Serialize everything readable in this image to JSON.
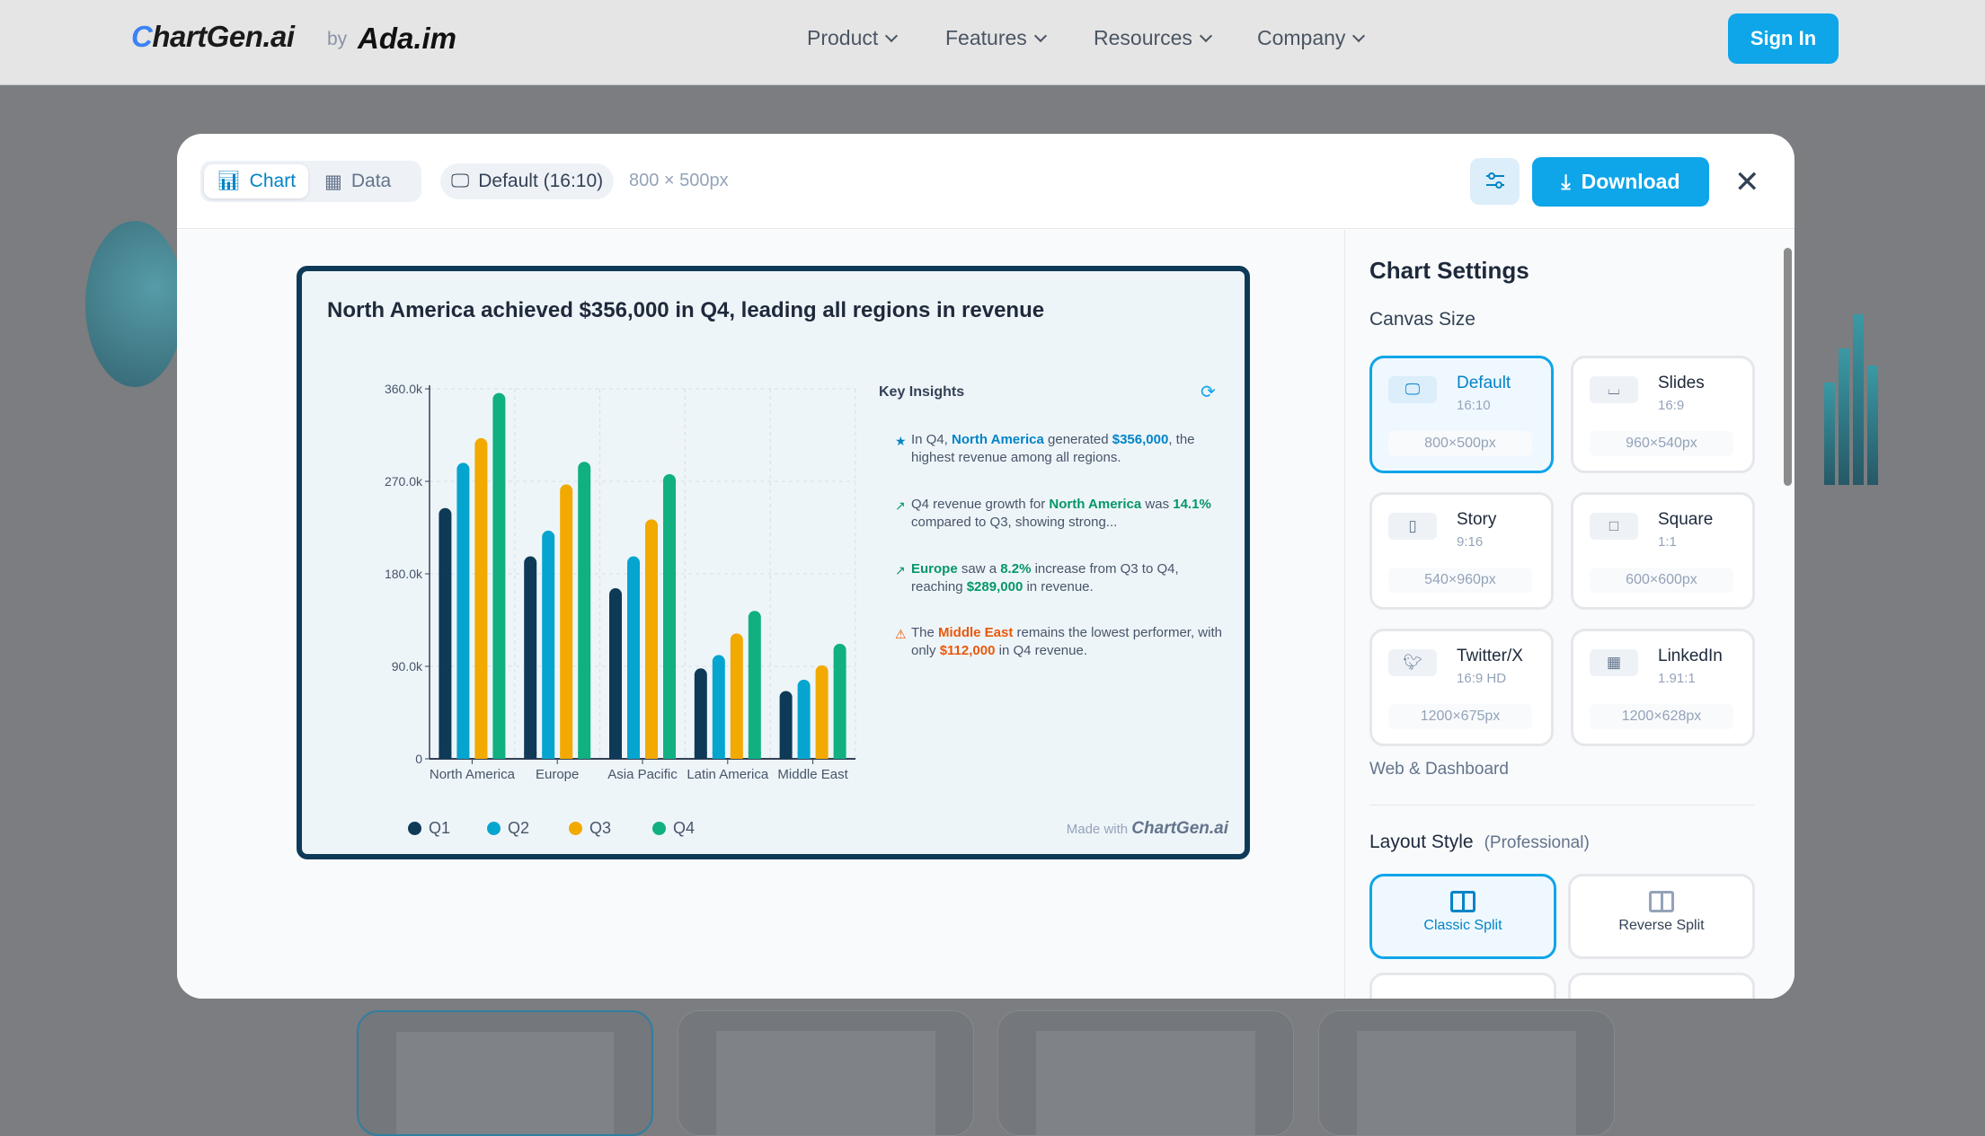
{
  "nav": {
    "logo": "ChartGen.ai",
    "by": "by",
    "partner_logo": "Ada.im",
    "items": [
      {
        "label": "Product"
      },
      {
        "label": "Features"
      },
      {
        "label": "Resources"
      },
      {
        "label": "Company"
      }
    ],
    "sign_in": "Sign In"
  },
  "toolbar": {
    "tabs": [
      {
        "label": "Chart",
        "icon": "bar-chart-icon"
      },
      {
        "label": "Data",
        "icon": "table-icon"
      }
    ],
    "canvas_preset": "Default (16:10)",
    "dimensions": "800 × 500px",
    "download": "Download",
    "accent": "#0ea5e9"
  },
  "chart_card": {
    "insights_title": "Key Insights",
    "insights": [
      {
        "icon": "star-icon",
        "color": "#0284c7",
        "segments": [
          {
            "t": "In Q4, "
          },
          {
            "t": "North America",
            "b": 1
          },
          {
            "t": " generated "
          },
          {
            "t": "$356,000",
            "b": 1
          },
          {
            "t": ", the highest revenue among all regions."
          }
        ]
      },
      {
        "icon": "trend-up-icon",
        "color": "#059669",
        "segments": [
          {
            "t": "Q4 revenue growth for "
          },
          {
            "t": "North America",
            "b": 1
          },
          {
            "t": " was "
          },
          {
            "t": "14.1%",
            "b": 1
          },
          {
            "t": " compared to Q3, showing strong..."
          }
        ]
      },
      {
        "icon": "trend-up-icon",
        "color": "#059669",
        "segments": [
          {
            "t": "Europe",
            "b": 1
          },
          {
            "t": " saw a "
          },
          {
            "t": "8.2%",
            "b": 1
          },
          {
            "t": " increase from Q3 to Q4, reaching "
          },
          {
            "t": "$289,000",
            "b": 1
          },
          {
            "t": " in revenue."
          }
        ]
      },
      {
        "icon": "warning-icon",
        "color": "#ea580c",
        "segments": [
          {
            "t": "The "
          },
          {
            "t": "Middle East",
            "b": 1
          },
          {
            "t": " remains the lowest performer, with only "
          },
          {
            "t": "$112,000",
            "b": 1
          },
          {
            "t": " in Q4 revenue."
          }
        ]
      }
    ],
    "made_with": "Made with",
    "made_with_brand": "ChartGen.ai"
  },
  "chart_data": {
    "type": "bar",
    "title": "North America achieved $356,000 in Q4, leading all regions in revenue",
    "categories": [
      "North America",
      "Europe",
      "Asia Pacific",
      "Latin America",
      "Middle East"
    ],
    "series": [
      {
        "name": "Q1",
        "color": "#0f3a57",
        "values": [
          244000,
          197000,
          166000,
          88000,
          66000
        ]
      },
      {
        "name": "Q2",
        "color": "#06a5cf",
        "values": [
          288000,
          222000,
          197000,
          101000,
          77000
        ]
      },
      {
        "name": "Q3",
        "color": "#f2a900",
        "values": [
          312000,
          267000,
          233000,
          122000,
          91000
        ]
      },
      {
        "name": "Q4",
        "color": "#10b081",
        "values": [
          356000,
          289000,
          277000,
          144000,
          112000
        ]
      }
    ],
    "yticks": [
      "0",
      "90.0k",
      "180.0k",
      "270.0k",
      "360.0k"
    ],
    "ylim": [
      0,
      360000
    ],
    "grid": true,
    "legend": "bottom"
  },
  "settings": {
    "title": "Chart Settings",
    "canvas_size_label": "Canvas Size",
    "sizes": [
      {
        "name": "Default",
        "ratio": "16:10",
        "px": "800×500px",
        "icon": "monitor-icon",
        "selected": true
      },
      {
        "name": "Slides",
        "ratio": "16:9",
        "px": "960×540px",
        "icon": "presentation-icon"
      },
      {
        "name": "Story",
        "ratio": "9:16",
        "px": "540×960px",
        "icon": "phone-icon"
      },
      {
        "name": "Square",
        "ratio": "1:1",
        "px": "600×600px",
        "icon": "square-icon"
      },
      {
        "name": "Twitter/X",
        "ratio": "16:9 HD",
        "px": "1200×675px",
        "icon": "twitter-icon"
      },
      {
        "name": "LinkedIn",
        "ratio": "1.91:1",
        "px": "1200×628px",
        "icon": "grid-icon"
      }
    ],
    "web_dashboard": "Web & Dashboard",
    "layout_style_label": "Layout Style",
    "layout_style_value": "(Professional)",
    "layouts": [
      {
        "name": "Classic Split",
        "selected": true
      },
      {
        "name": "Reverse Split"
      }
    ]
  }
}
